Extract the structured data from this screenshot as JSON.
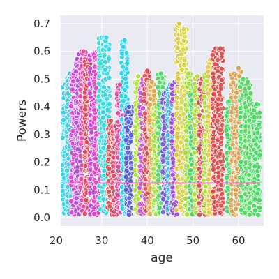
{
  "chart_data": {
    "type": "scatter",
    "title": "",
    "xlabel": "age",
    "ylabel": "Powers",
    "xlim": [
      21,
      65.5
    ],
    "ylim": [
      -0.03,
      0.73
    ],
    "x_ticks": [
      20,
      30,
      40,
      50,
      60
    ],
    "y_ticks": [
      0.0,
      0.1,
      0.2,
      0.3,
      0.4,
      0.5,
      0.6,
      0.7
    ],
    "x_tick_labels": [
      "20",
      "30",
      "40",
      "50",
      "60"
    ],
    "y_tick_labels": [
      "0.0",
      "0.1",
      "0.2",
      "0.3",
      "0.4",
      "0.5",
      "0.6",
      "0.7"
    ],
    "grid": true,
    "legend": "none",
    "style": "seaborn-darkgrid",
    "background_color": "#eaeaf2",
    "grid_color": "#ffffff",
    "marker_edge_color": "#ffffff",
    "median_line_y": 0.125,
    "median_line_color": "#d96fb0",
    "series": [
      {
        "age": 22,
        "max": 0.48,
        "color": "#36d7e6"
      },
      {
        "age": 23,
        "max": 0.52,
        "color": "#4fc9dd"
      },
      {
        "age": 24,
        "max": 0.53,
        "color": "#d64bd0"
      },
      {
        "age": 25,
        "max": 0.59,
        "color": "#b254d6"
      },
      {
        "age": 26,
        "max": 0.6,
        "color": "#e052a8"
      },
      {
        "age": 27,
        "max": 0.57,
        "color": "#dd4d57"
      },
      {
        "age": 28,
        "max": 0.59,
        "color": "#c548d8"
      },
      {
        "age": 29,
        "max": 0.6,
        "color": "#e04ac4"
      },
      {
        "age": 30,
        "max": 0.65,
        "color": "#40dcd3"
      },
      {
        "age": 31,
        "max": 0.65,
        "color": "#3fd6e0"
      },
      {
        "age": 32,
        "max": 0.35,
        "color": "#d85555"
      },
      {
        "age": 33,
        "max": 0.33,
        "color": "#e15070"
      },
      {
        "age": 34,
        "max": 0.48,
        "color": "#dd4fa3"
      },
      {
        "age": 35,
        "max": 0.64,
        "color": "#35d2e8"
      },
      {
        "age": 36,
        "max": 0.4,
        "color": "#5b62d9"
      },
      {
        "age": 38,
        "max": 0.51,
        "color": "#b0e040"
      },
      {
        "age": 39,
        "max": 0.5,
        "color": "#c85dd4"
      },
      {
        "age": 40,
        "max": 0.53,
        "color": "#dc4f59"
      },
      {
        "age": 41,
        "max": 0.49,
        "color": "#e0a94a"
      },
      {
        "age": 42,
        "max": 0.4,
        "color": "#a6e246"
      },
      {
        "age": 43,
        "max": 0.52,
        "color": "#5bd66f"
      },
      {
        "age": 44,
        "max": 0.45,
        "color": "#7b5ee0"
      },
      {
        "age": 45,
        "max": 0.48,
        "color": "#50b8e0"
      },
      {
        "age": 46,
        "max": 0.49,
        "color": "#a052d8"
      },
      {
        "age": 47,
        "max": 0.7,
        "color": "#dccb48"
      },
      {
        "age": 48,
        "max": 0.68,
        "color": "#d9d853"
      },
      {
        "age": 49,
        "max": 0.52,
        "color": "#a6de44"
      },
      {
        "age": 50,
        "max": 0.48,
        "color": "#4ad86f"
      },
      {
        "age": 51,
        "max": 0.51,
        "color": "#b8d94a"
      },
      {
        "age": 52,
        "max": 0.5,
        "color": "#d6545d"
      },
      {
        "age": 53,
        "max": 0.52,
        "color": "#b2e146"
      },
      {
        "age": 54,
        "max": 0.57,
        "color": "#e0c84f"
      },
      {
        "age": 55,
        "max": 0.61,
        "color": "#de4d4f"
      },
      {
        "age": 56,
        "max": 0.61,
        "color": "#dc5454"
      },
      {
        "age": 58,
        "max": 0.42,
        "color": "#4bd86e"
      },
      {
        "age": 59,
        "max": 0.52,
        "color": "#dba85a"
      },
      {
        "age": 60,
        "max": 0.54,
        "color": "#d9a65c"
      },
      {
        "age": 61,
        "max": 0.5,
        "color": "#4fdc6a"
      },
      {
        "age": 62,
        "max": 0.49,
        "color": "#56d95e"
      },
      {
        "age": 63,
        "max": 0.41,
        "color": "#58dc66"
      },
      {
        "age": 64,
        "max": 0.41,
        "color": "#4fd86a"
      }
    ]
  }
}
